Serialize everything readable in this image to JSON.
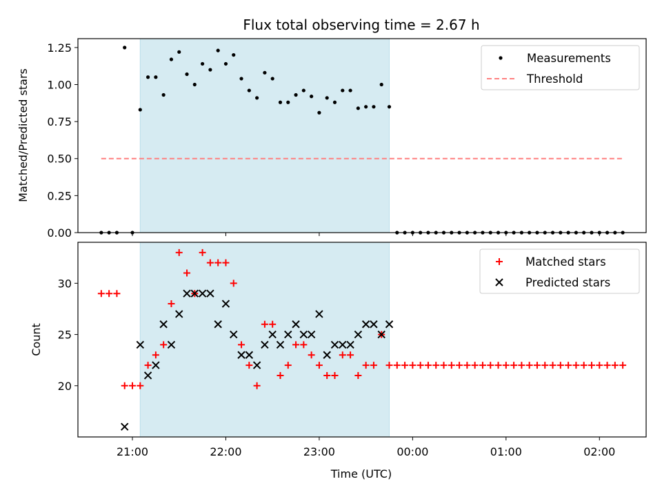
{
  "chart_data": [
    {
      "type": "scatter",
      "title": "Flux total observing time = 2.67 h",
      "xlabel": "",
      "ylabel": "Matched/Predicted stars",
      "ylim": [
        0,
        1.31
      ],
      "yticks": [
        "0.00",
        "0.25",
        "0.50",
        "0.75",
        "1.00",
        "1.25"
      ],
      "shaded_span": {
        "start": "21:05",
        "end": "23:45",
        "color": "#add8e6"
      },
      "legend_position": "top-right",
      "series": [
        {
          "name": "Measurements",
          "marker": "dot",
          "color": "#000000",
          "x": [
            "20:40",
            "20:45",
            "20:50",
            "20:55",
            "21:00",
            "21:05",
            "21:10",
            "21:15",
            "21:20",
            "21:25",
            "21:30",
            "21:35",
            "21:40",
            "21:45",
            "21:50",
            "21:55",
            "22:00",
            "22:05",
            "22:10",
            "22:15",
            "22:20",
            "22:25",
            "22:30",
            "22:35",
            "22:40",
            "22:45",
            "22:50",
            "22:55",
            "23:00",
            "23:05",
            "23:10",
            "23:15",
            "23:20",
            "23:25",
            "23:30",
            "23:35",
            "23:40",
            "23:45",
            "23:50",
            "23:55",
            "00:00",
            "00:05",
            "00:10",
            "00:15",
            "00:20",
            "00:25",
            "00:30",
            "00:35",
            "00:40",
            "00:45",
            "00:50",
            "00:55",
            "01:00",
            "01:05",
            "01:10",
            "01:15",
            "01:20",
            "01:25",
            "01:30",
            "01:35",
            "01:40",
            "01:45",
            "01:50",
            "01:55",
            "02:00",
            "02:05",
            "02:10",
            "02:15"
          ],
          "y": [
            0,
            0,
            0,
            1.25,
            0,
            0.83,
            1.05,
            1.05,
            0.93,
            1.17,
            1.22,
            1.07,
            1.0,
            1.14,
            1.1,
            1.23,
            1.14,
            1.2,
            1.04,
            0.96,
            0.91,
            1.08,
            1.04,
            0.88,
            0.88,
            0.93,
            0.96,
            0.92,
            0.81,
            0.91,
            0.88,
            0.96,
            0.96,
            0.84,
            0.85,
            0.85,
            1.0,
            0.85,
            0,
            0,
            0,
            0,
            0,
            0,
            0,
            0,
            0,
            0,
            0,
            0,
            0,
            0,
            0,
            0,
            0,
            0,
            0,
            0,
            0,
            0,
            0,
            0,
            0,
            0,
            0,
            0,
            0,
            0
          ]
        },
        {
          "name": "Threshold",
          "marker": "dashed-line",
          "color": "#ff7f7f",
          "x": [
            "20:40",
            "02:15"
          ],
          "y": [
            0.5,
            0.5
          ]
        }
      ]
    },
    {
      "type": "scatter",
      "title": "",
      "xlabel": "Time (UTC)",
      "ylabel": "Count",
      "ylim": [
        15,
        34
      ],
      "yticks": [
        "20",
        "25",
        "30"
      ],
      "xticks": [
        "21:00",
        "22:00",
        "23:00",
        "00:00",
        "01:00",
        "02:00"
      ],
      "xlim": [
        "20:25",
        "02:30"
      ],
      "shaded_span": {
        "start": "21:05",
        "end": "23:45",
        "color": "#add8e6"
      },
      "legend_position": "top-right",
      "series": [
        {
          "name": "Matched stars",
          "marker": "plus",
          "color": "#ff0000",
          "x": [
            "20:40",
            "20:45",
            "20:50",
            "20:55",
            "21:00",
            "21:05",
            "21:10",
            "21:15",
            "21:20",
            "21:25",
            "21:30",
            "21:35",
            "21:40",
            "21:45",
            "21:50",
            "21:55",
            "22:00",
            "22:05",
            "22:10",
            "22:15",
            "22:20",
            "22:25",
            "22:30",
            "22:35",
            "22:40",
            "22:45",
            "22:50",
            "22:55",
            "23:00",
            "23:05",
            "23:10",
            "23:15",
            "23:20",
            "23:25",
            "23:30",
            "23:35",
            "23:40",
            "23:45",
            "23:50",
            "23:55",
            "00:00",
            "00:05",
            "00:10",
            "00:15",
            "00:20",
            "00:25",
            "00:30",
            "00:35",
            "00:40",
            "00:45",
            "00:50",
            "00:55",
            "01:00",
            "01:05",
            "01:10",
            "01:15",
            "01:20",
            "01:25",
            "01:30",
            "01:35",
            "01:40",
            "01:45",
            "01:50",
            "01:55",
            "02:00",
            "02:05",
            "02:10",
            "02:15"
          ],
          "y": [
            29,
            29,
            29,
            20,
            20,
            20,
            22,
            23,
            24,
            28,
            33,
            31,
            29,
            33,
            32,
            32,
            32,
            30,
            24,
            22,
            20,
            26,
            26,
            21,
            22,
            24,
            24,
            23,
            22,
            21,
            21,
            23,
            23,
            21,
            22,
            22,
            25,
            22,
            22,
            22,
            22,
            22,
            22,
            22,
            22,
            22,
            22,
            22,
            22,
            22,
            22,
            22,
            22,
            22,
            22,
            22,
            22,
            22,
            22,
            22,
            22,
            22,
            22,
            22,
            22,
            22,
            22,
            22
          ]
        },
        {
          "name": "Predicted stars",
          "marker": "x",
          "color": "#000000",
          "x": [
            "20:55",
            "21:05",
            "21:10",
            "21:15",
            "21:20",
            "21:25",
            "21:30",
            "21:35",
            "21:40",
            "21:45",
            "21:50",
            "21:55",
            "22:00",
            "22:05",
            "22:10",
            "22:15",
            "22:20",
            "22:25",
            "22:30",
            "22:35",
            "22:40",
            "22:45",
            "22:50",
            "22:55",
            "23:00",
            "23:05",
            "23:10",
            "23:15",
            "23:20",
            "23:25",
            "23:30",
            "23:35",
            "23:40",
            "23:45"
          ],
          "y": [
            16,
            24,
            21,
            22,
            26,
            24,
            27,
            29,
            29,
            29,
            29,
            26,
            28,
            25,
            23,
            23,
            22,
            24,
            25,
            24,
            25,
            26,
            25,
            25,
            27,
            23,
            24,
            24,
            24,
            25,
            26,
            26,
            25,
            26
          ]
        }
      ]
    }
  ]
}
